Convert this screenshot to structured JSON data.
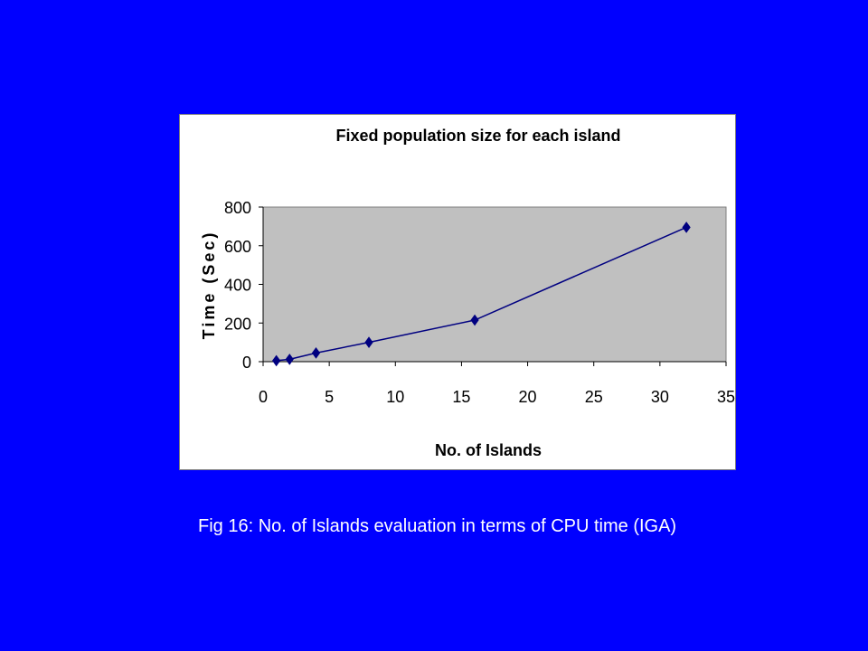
{
  "chart_data": {
    "type": "line",
    "title": "Fixed population size for each island",
    "xlabel": "No. of Islands",
    "ylabel": "Time (Sec)",
    "xlim": [
      0,
      35
    ],
    "ylim": [
      0,
      800
    ],
    "xticks": [
      0,
      5,
      10,
      15,
      20,
      25,
      30,
      35
    ],
    "yticks": [
      0,
      200,
      400,
      600,
      800
    ],
    "xtick_labels": [
      "0",
      "5",
      "10",
      "15",
      "20",
      "25",
      "30",
      "35"
    ],
    "ytick_labels": [
      "0",
      "200",
      "400",
      "600",
      "800"
    ],
    "grid": false,
    "legend": "none",
    "plot_background": "#C0C0C0",
    "series": [
      {
        "color": "#000080",
        "marker": "diamond",
        "x": [
          1,
          2,
          4,
          8,
          16,
          32
        ],
        "y": [
          5,
          12,
          45,
          100,
          215,
          695
        ]
      }
    ]
  },
  "caption": "Fig 16: No. of Islands evaluation in terms of CPU time (IGA)",
  "colors": {
    "slide_background": "#0000FF",
    "caption_text": "#FFFFFF",
    "chart_panel": "#FFFFFF"
  }
}
